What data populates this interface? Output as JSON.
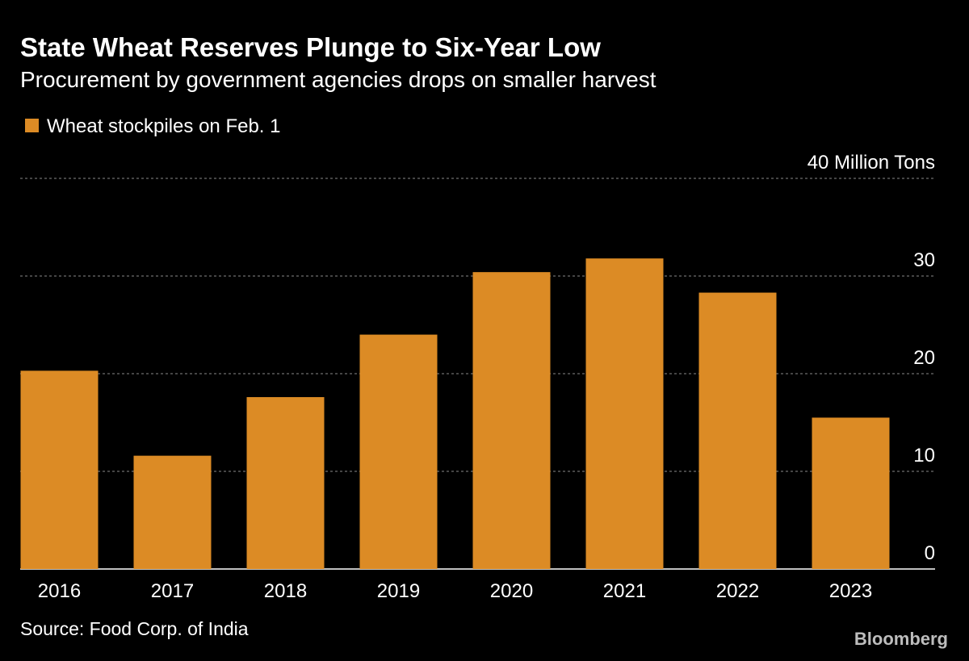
{
  "chart_data": {
    "type": "bar",
    "title": "State Wheat Reserves Plunge to Six-Year Low",
    "subtitle": "Procurement by government agencies drops on smaller harvest",
    "legend": [
      {
        "name": "Wheat stockpiles on Feb. 1",
        "color": "#dc8b25"
      }
    ],
    "legend_placement": "top-left",
    "categories": [
      "2016",
      "2017",
      "2018",
      "2019",
      "2020",
      "2021",
      "2022",
      "2023"
    ],
    "series": [
      {
        "name": "Wheat stockpiles on Feb. 1",
        "values": [
          20.3,
          11.6,
          17.6,
          24.0,
          30.4,
          31.8,
          28.3,
          15.5
        ]
      }
    ],
    "ylabel": "Million Tons",
    "ylim": [
      0,
      40
    ],
    "yticks": [
      "0",
      "10",
      "20",
      "30",
      "40 Million Tons"
    ],
    "ytick_values": [
      0,
      10,
      20,
      30,
      40
    ],
    "y_axis_side": "right",
    "grid": true,
    "source": "Source: Food Corp. of India",
    "brand": "Bloomberg",
    "colors": {
      "bar": "#dc8b25",
      "background": "#000000",
      "grid": "#8a8a8a"
    }
  }
}
